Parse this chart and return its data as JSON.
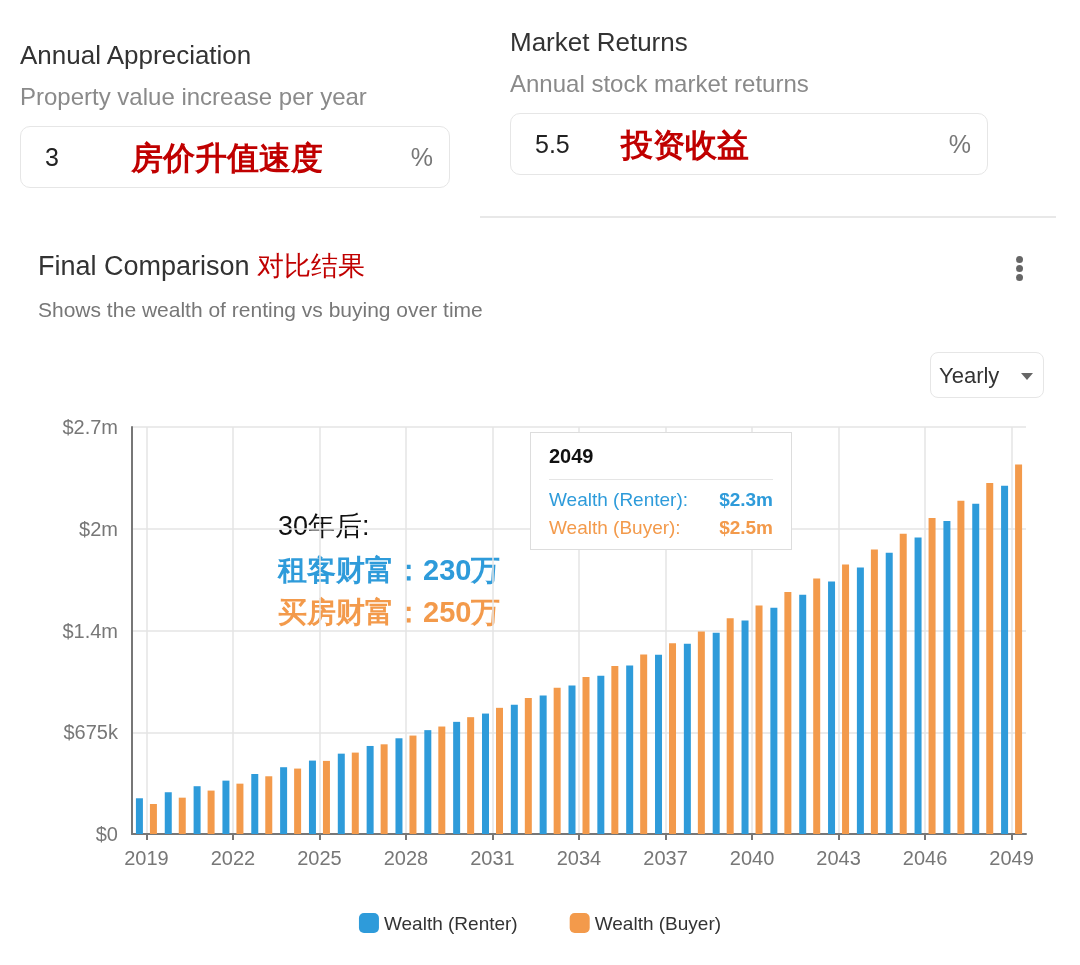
{
  "chart_data": [
    {
      "type": "other",
      "title": "Annual Appreciation",
      "subtitle": "Property value increase per year",
      "annotations": [
        "3",
        "%",
        "房价升值速度"
      ]
    },
    {
      "type": "other",
      "title": "Market Returns",
      "subtitle": "Annual stock market returns",
      "annotations": [
        "5.5",
        "%",
        "投资收益"
      ]
    },
    {
      "type": "bar",
      "title": "Final Comparison",
      "subtitle": "Shows the wealth of renting vs buying over time",
      "annotations": [
        "对比结果",
        "Yearly",
        "30年后:",
        "租客财富：230万",
        "买房财富：250万",
        "2049",
        "Wealth (Renter):",
        "$2.3m",
        "Wealth (Buyer):",
        "$2.5m"
      ],
      "categories": [
        "2019",
        null,
        null,
        "2022",
        null,
        null,
        "2025",
        null,
        null,
        "2028",
        null,
        null,
        "2031",
        null,
        null,
        "2034",
        null,
        null,
        "2037",
        null,
        null,
        "2040",
        null,
        null,
        "2043",
        null,
        null,
        "2046",
        null,
        null,
        "2049"
      ],
      "series": [
        {
          "name": "Wealth (Renter)",
          "color": "#2e9bda",
          "values": [
            237000,
            277000,
            317000,
            354000,
            398000,
            443000,
            487000,
            533000,
            584000,
            635000,
            689000,
            744000,
            799000,
            857000,
            918000,
            985000,
            1049000,
            1118000,
            1189000,
            1262000,
            1335000,
            1416000,
            1501000,
            1587000,
            1675000,
            1768000,
            1866000,
            1967000,
            2076000,
            2191000,
            2311000
          ]
        },
        {
          "name": "Wealth (Buyer)",
          "color": "#f39a4b",
          "values": [
            199000,
            241000,
            288000,
            334000,
            383000,
            434000,
            485000,
            540000,
            595000,
            653000,
            713000,
            775000,
            837000,
            903000,
            971000,
            1042000,
            1115000,
            1191000,
            1266000,
            1343000,
            1432000,
            1516000,
            1605000,
            1695000,
            1788000,
            1888000,
            1992000,
            2096000,
            2211000,
            2329000,
            2452000
          ]
        }
      ],
      "ylim": [
        0,
        2700000
      ],
      "yticks": [
        {
          "value": 0,
          "label": "$0"
        },
        {
          "value": 675000,
          "label": "$675k"
        },
        {
          "value": 1350000,
          "label": "$1.4m"
        },
        {
          "value": 2025000,
          "label": "$2m"
        },
        {
          "value": 2700000,
          "label": "$2.7m"
        }
      ],
      "grid": true,
      "legend": "bottom"
    }
  ]
}
